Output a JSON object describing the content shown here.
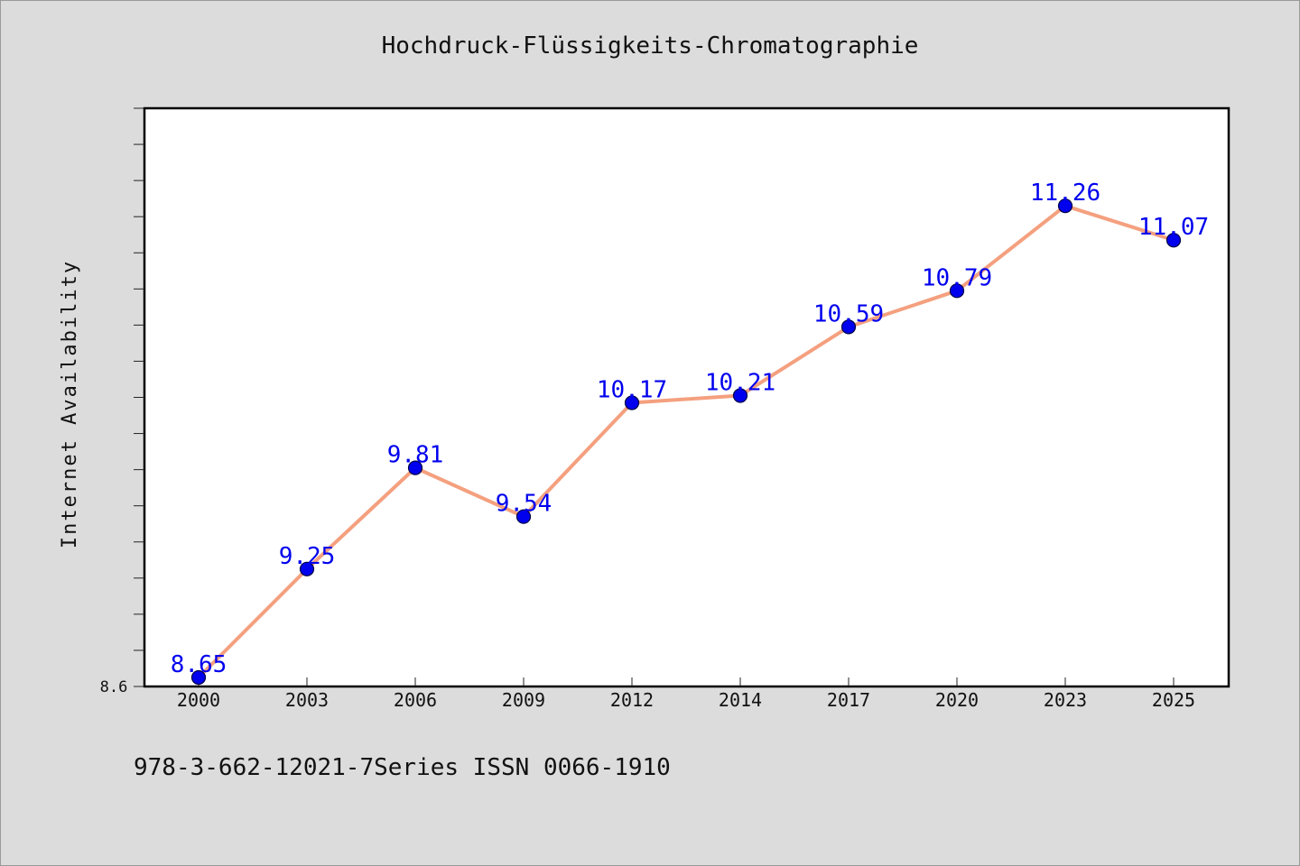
{
  "chart_data": {
    "type": "line",
    "title": "Hochdruck-Flüssigkeits-Chromatographie",
    "xlabel": "",
    "ylabel": "Internet Availability",
    "categories": [
      "2000",
      "2003",
      "2006",
      "2009",
      "2012",
      "2014",
      "2017",
      "2020",
      "2023",
      "2025"
    ],
    "series": [
      {
        "values": [
          8.65,
          9.25,
          9.81,
          9.54,
          10.17,
          10.21,
          10.59,
          10.79,
          11.26,
          11.07
        ],
        "labels": [
          "8.65",
          "9.25",
          "9.81",
          "9.54",
          "10.17",
          "10.21",
          "10.59",
          "10.79",
          "11.26",
          "11.07"
        ]
      }
    ],
    "ylim": [
      8.6,
      11.8
    ],
    "y_tick_labels": [
      "8.6"
    ],
    "grid": false,
    "legend": "none"
  },
  "footer": {
    "text": "978-3-662-12021-7Series ISSN 0066-1910"
  },
  "colors": {
    "background": "#dcdcdc",
    "plot_background": "#ffffff",
    "line": "#f4a07f",
    "marker": "#0000ee",
    "data_label": "#0000ee",
    "text": "#111111"
  }
}
